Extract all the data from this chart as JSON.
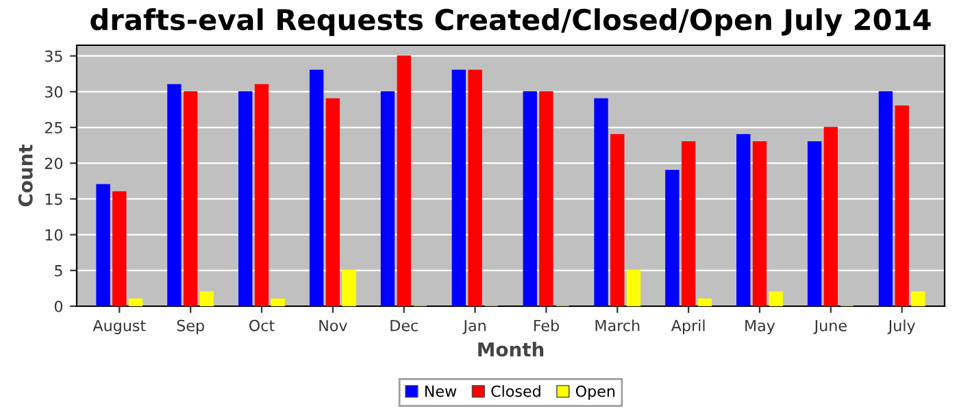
{
  "chart_data": {
    "type": "bar",
    "title": "drafts-eval Requests Created/Closed/Open July 2014",
    "xlabel": "Month",
    "ylabel": "Count",
    "categories": [
      "August",
      "Sep",
      "Oct",
      "Nov",
      "Dec",
      "Jan",
      "Feb",
      "March",
      "April",
      "May",
      "June",
      "July"
    ],
    "series": [
      {
        "name": "New",
        "color": "#0000ff",
        "values": [
          17,
          31,
          30,
          33,
          30,
          33,
          30,
          29,
          19,
          24,
          23,
          30
        ]
      },
      {
        "name": "Closed",
        "color": "#ff0000",
        "values": [
          16,
          30,
          31,
          29,
          35,
          33,
          30,
          24,
          23,
          23,
          25,
          28
        ]
      },
      {
        "name": "Open",
        "color": "#ffff00",
        "values": [
          1,
          2,
          1,
          5,
          0,
          0,
          0,
          5,
          1,
          2,
          0,
          2
        ]
      }
    ],
    "ylim": [
      0,
      36.5
    ],
    "yticks": [
      0,
      5,
      10,
      15,
      20,
      25,
      30,
      35
    ],
    "grid": "y",
    "legend": "bottom"
  }
}
